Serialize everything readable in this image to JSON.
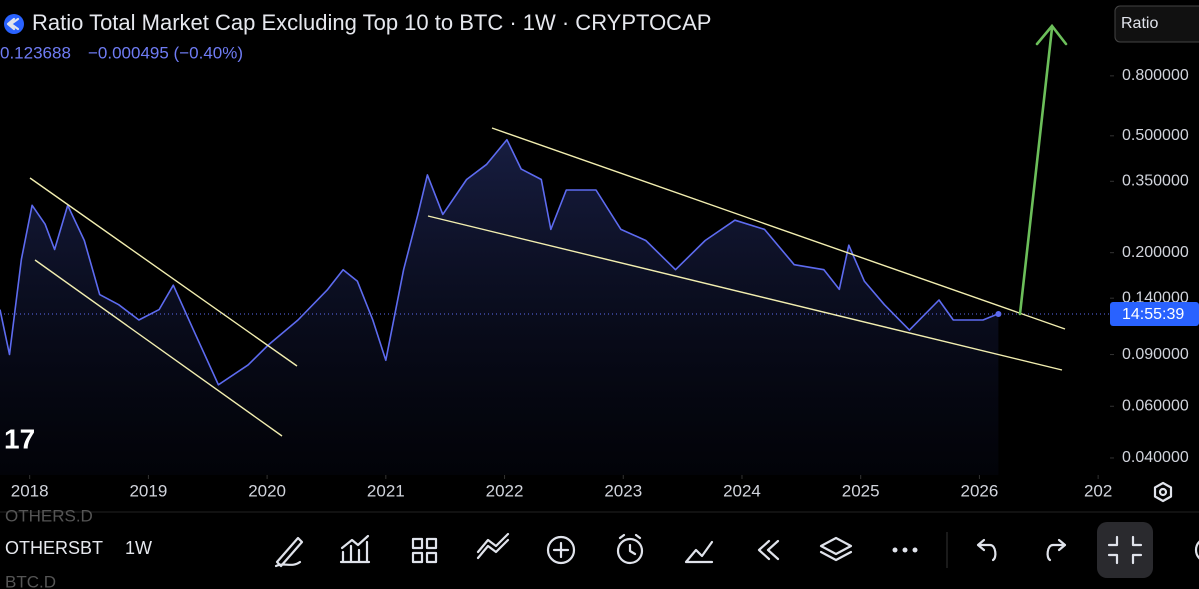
{
  "chart_data": {
    "type": "line",
    "title": "Ratio Total Market Cap Excluding Top 10 to BTC · 1W · CRYPTOCAP",
    "last_value": 0.123688,
    "price_change": "−0.000495 (−0.40%)",
    "scale_mode": "Ratio",
    "countdown": "14:55:39",
    "symbol": "OTHERSBT",
    "interval": "1W",
    "watchlist": [
      "OTHERS.D",
      "BTC.D"
    ],
    "color": "#5d6bf0",
    "log_scale": true,
    "x": [
      2017.75,
      2017.83,
      2017.93,
      2018.02,
      2018.13,
      2018.21,
      2018.32,
      2018.46,
      2018.59,
      2018.75,
      2018.92,
      2019.09,
      2019.21,
      2019.38,
      2019.59,
      2019.84,
      2020.01,
      2020.26,
      2020.51,
      2020.64,
      2020.76,
      2020.89,
      2021.0,
      2021.15,
      2021.27,
      2021.35,
      2021.48,
      2021.68,
      2021.85,
      2022.02,
      2022.14,
      2022.31,
      2022.39,
      2022.52,
      2022.77,
      2022.98,
      2023.19,
      2023.44,
      2023.69,
      2023.94,
      2024.19,
      2024.44,
      2024.69,
      2024.82,
      2024.9,
      2025.03,
      2025.2,
      2025.41,
      2025.66,
      2025.78,
      2026.03,
      2026.16
    ],
    "values": [
      0.128,
      0.09,
      0.19,
      0.29,
      0.25,
      0.205,
      0.29,
      0.22,
      0.144,
      0.133,
      0.118,
      0.128,
      0.155,
      0.109,
      0.071,
      0.083,
      0.097,
      0.118,
      0.15,
      0.175,
      0.16,
      0.118,
      0.086,
      0.175,
      0.27,
      0.368,
      0.27,
      0.355,
      0.4,
      0.485,
      0.385,
      0.355,
      0.24,
      0.327,
      0.327,
      0.24,
      0.22,
      0.175,
      0.22,
      0.258,
      0.24,
      0.182,
      0.175,
      0.15,
      0.212,
      0.16,
      0.133,
      0.109,
      0.138,
      0.118,
      0.118,
      0.124
    ],
    "xlim": [
      2017.75,
      2027.1
    ],
    "xticks": [
      2018,
      2019,
      2020,
      2021,
      2022,
      2023,
      2024,
      2025,
      2026,
      {
        "value": 2027,
        "label": "202"
      }
    ],
    "ylim": [
      0.035,
      1.45
    ],
    "yticks": [
      {
        "value": 0.04,
        "label": "0.040000"
      },
      {
        "value": 0.06,
        "label": "0.060000"
      },
      {
        "value": 0.09,
        "label": "0.090000"
      },
      {
        "value": 0.14,
        "label": "0.140000"
      },
      {
        "value": 0.2,
        "label": "0.200000"
      },
      {
        "value": 0.35,
        "label": "0.350000"
      },
      {
        "value": 0.5,
        "label": "0.500000"
      },
      {
        "value": 0.8,
        "label": "0.800000"
      }
    ]
  }
}
